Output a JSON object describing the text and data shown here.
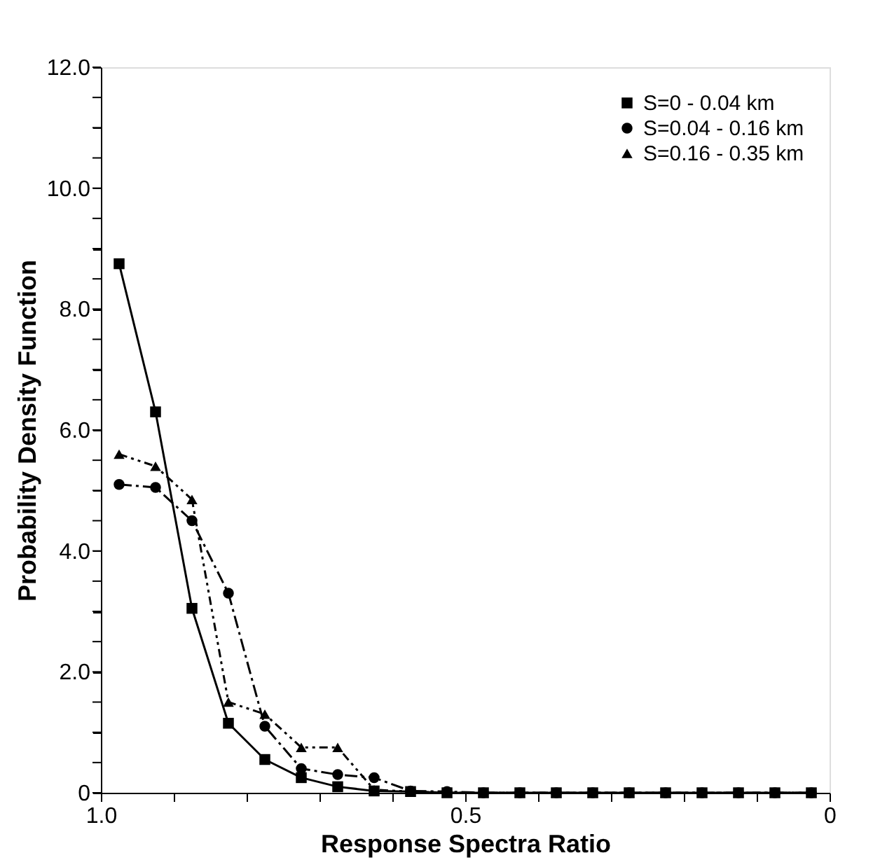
{
  "chart_data": {
    "type": "line",
    "xlabel": "Response Spectra Ratio",
    "ylabel": "Probability Density Function",
    "x": [
      0.975,
      0.925,
      0.875,
      0.825,
      0.775,
      0.725,
      0.675,
      0.625,
      0.575,
      0.525,
      0.475,
      0.425,
      0.375,
      0.325,
      0.275,
      0.225,
      0.175,
      0.125,
      0.075,
      0.025
    ],
    "series": [
      {
        "name": "S=0 - 0.04 km",
        "color": "#000000",
        "marker": "square",
        "line_style": "solid",
        "values": [
          8.75,
          6.3,
          3.05,
          1.15,
          0.55,
          0.25,
          0.1,
          0.03,
          0.02,
          0,
          0,
          0,
          0,
          0,
          0,
          0,
          0,
          0,
          0,
          0
        ]
      },
      {
        "name": "S=0.04 - 0.16 km",
        "color": "#000000",
        "marker": "circle",
        "line_style": "dashed",
        "values": [
          5.1,
          5.05,
          4.5,
          3.3,
          1.1,
          0.4,
          0.3,
          0.25,
          0.03,
          0.02,
          0,
          0,
          0,
          0,
          0,
          0,
          0,
          0,
          0,
          0
        ]
      },
      {
        "name": "S=0.16 - 0.35 km",
        "color": "#000000",
        "marker": "triangle",
        "line_style": "dotted",
        "values": [
          5.6,
          5.4,
          4.85,
          1.5,
          1.3,
          0.75,
          0.75,
          0.05,
          0.02,
          0,
          0,
          0,
          0,
          0,
          0,
          0,
          0,
          0,
          0,
          0
        ]
      }
    ],
    "xlim": [
      1.0,
      0
    ],
    "ylim": [
      0,
      12
    ],
    "xticks": [
      {
        "value": 1.0,
        "label": "1.0"
      },
      {
        "value": 0.9,
        "label": null
      },
      {
        "value": 0.8,
        "label": null
      },
      {
        "value": 0.7,
        "label": null
      },
      {
        "value": 0.6,
        "label": null
      },
      0.5,
      {
        "value": 0.4,
        "label": null
      },
      {
        "value": 0.3,
        "label": null
      },
      {
        "value": 0.2,
        "label": null
      },
      {
        "value": 0.1,
        "label": null
      },
      0
    ],
    "yticks": [
      0,
      {
        "value": 0.5,
        "label": null
      },
      {
        "value": 1,
        "label": null
      },
      {
        "value": 1.5,
        "label": null
      },
      {
        "value": 2,
        "label": "2.0"
      },
      {
        "value": 2.5,
        "label": null
      },
      {
        "value": 3,
        "label": null
      },
      {
        "value": 3.5,
        "label": null
      },
      {
        "value": 4,
        "label": "4.0"
      },
      {
        "value": 4.5,
        "label": null
      },
      {
        "value": 5,
        "label": null
      },
      {
        "value": 5.5,
        "label": null
      },
      {
        "value": 6,
        "label": "6.0"
      },
      {
        "value": 6.5,
        "label": null
      },
      {
        "value": 7,
        "label": null
      },
      {
        "value": 7.5,
        "label": null
      },
      {
        "value": 8,
        "label": "8.0"
      },
      {
        "value": 8.5,
        "label": null
      },
      {
        "value": 9,
        "label": null
      },
      {
        "value": 9.5,
        "label": null
      },
      {
        "value": 10,
        "label": "10.0"
      },
      {
        "value": 10.5,
        "label": null
      },
      {
        "value": 11,
        "label": null
      },
      {
        "value": 11.5,
        "label": null
      },
      {
        "value": 12,
        "label": "12.0"
      }
    ],
    "grid": false,
    "legend": "top right"
  }
}
